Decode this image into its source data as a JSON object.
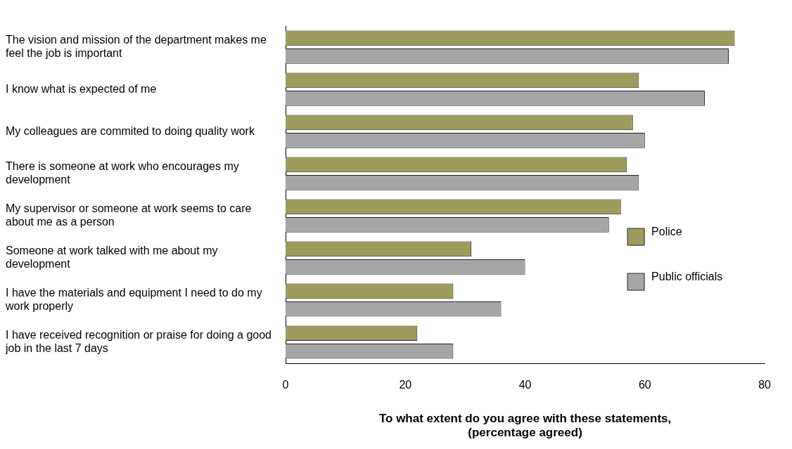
{
  "chart_data": {
    "type": "bar",
    "orientation": "horizontal",
    "xlabel": "To what extent do you agree with these statements,\n(percentage agreed)",
    "categories": [
      "The vision and mission of the department makes me\nfeel the job is important",
      "I know what is expected of me",
      "My colleagues are commited to doing quality work",
      "There is someone at work who encourages my\ndevelopment",
      "My supervisor or someone at work seems to care\nabout me as a person",
      "Someone at work talked with me about my\ndevelopment",
      "I have the materials and equipment I need to do my\nwork properly",
      "I have received recognition or praise for doing a good\njob in the last 7 days"
    ],
    "series": [
      {
        "name": "Police",
        "color": "#9e9c5c",
        "values": [
          75,
          59,
          58,
          57,
          56,
          31,
          28,
          22
        ]
      },
      {
        "name": "Public officials",
        "color": "#a6a6a6",
        "values": [
          74,
          70,
          60,
          59,
          54,
          40,
          36,
          28
        ]
      }
    ],
    "xlim": [
      0,
      80
    ],
    "xticks": [
      0,
      20,
      40,
      60,
      80
    ],
    "grid": false,
    "legend": "right"
  }
}
